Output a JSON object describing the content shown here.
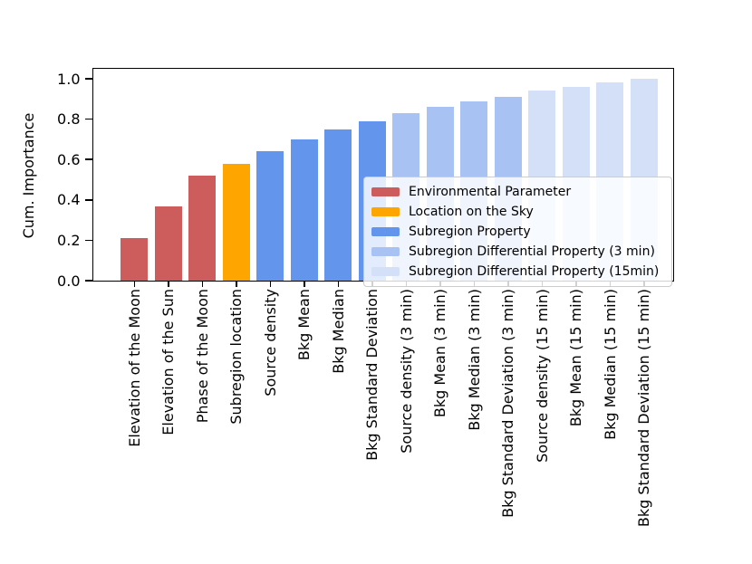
{
  "figure": {
    "background": "#ffffff",
    "axis_color": "#000000"
  },
  "chart_data": {
    "type": "bar",
    "title": "",
    "xlabel": "",
    "ylabel": "Cum. Importance",
    "ylim": [
      0.0,
      1.05
    ],
    "yticks": [
      0.0,
      0.2,
      0.4,
      0.6,
      0.8,
      1.0
    ],
    "ytick_labels": [
      "0.0",
      "0.2",
      "0.4",
      "0.6",
      "0.8",
      "1.0"
    ],
    "grid": false,
    "legend_position": "lower right",
    "categories": [
      "Elevation of the Moon",
      "Elevation of the Sun",
      "Phase of the Moon",
      "Subregion location",
      "Source density",
      "Bkg Mean",
      "Bkg Median",
      "Bkg Standard Deviation",
      "Source density (3 min)",
      "Bkg Mean (3 min)",
      "Bkg Median (3 min)",
      "Bkg Standard Deviation (3 min)",
      "Source density (15 min)",
      "Bkg Mean (15 min)",
      "Bkg Median (15 min)",
      "Bkg Standard Deviation (15 min)"
    ],
    "values": [
      0.21,
      0.37,
      0.52,
      0.58,
      0.64,
      0.7,
      0.75,
      0.79,
      0.83,
      0.86,
      0.89,
      0.91,
      0.94,
      0.96,
      0.98,
      1.0
    ],
    "bar_groups": [
      "environmental",
      "environmental",
      "environmental",
      "sky",
      "subregion",
      "subregion",
      "subregion",
      "subregion",
      "diff3",
      "diff3",
      "diff3",
      "diff3",
      "diff15",
      "diff15",
      "diff15",
      "diff15"
    ],
    "groups": {
      "environmental": {
        "label": "Environmental Parameter",
        "color": "#CD5C5C"
      },
      "sky": {
        "label": "Location on the Sky",
        "color": "#FFA500"
      },
      "subregion": {
        "label": "Subregion Property",
        "color": "#6495ED"
      },
      "diff3": {
        "label": "Subregion Differential Property (3 min)",
        "color": "#A7C2F3"
      },
      "diff15": {
        "label": "Subregion Differential Property (15min)",
        "color": "#D3E0F8"
      }
    },
    "legend_order": [
      "environmental",
      "sky",
      "subregion",
      "diff3",
      "diff15"
    ]
  }
}
